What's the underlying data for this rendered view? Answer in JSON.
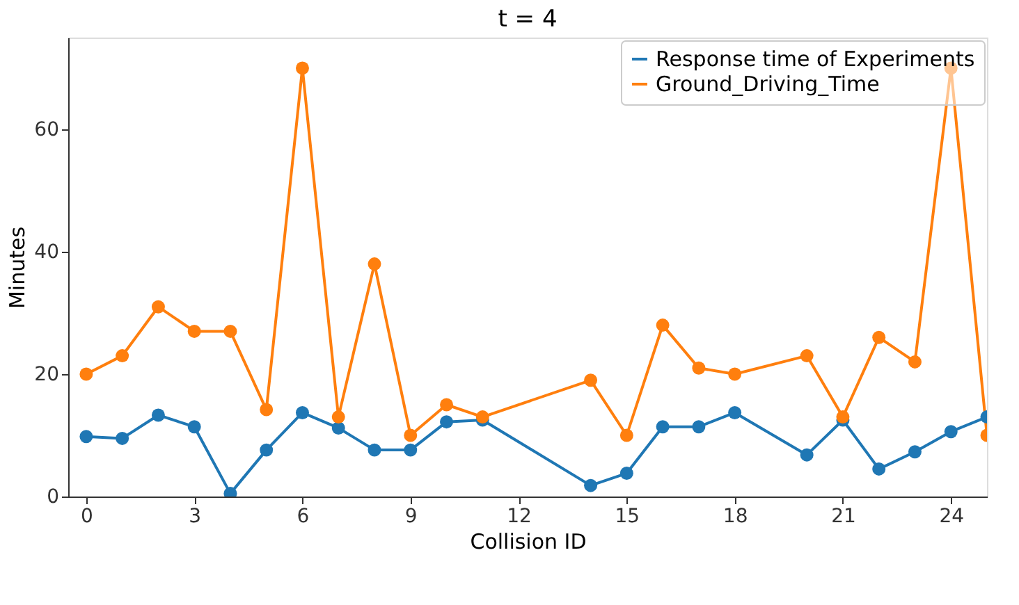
{
  "chart_data": {
    "type": "line",
    "title": "t = 4",
    "xlabel": "Collision ID",
    "ylabel": "Minutes",
    "x": [
      0,
      1,
      2,
      3,
      4,
      5,
      6,
      7,
      8,
      9,
      10,
      11,
      14,
      15,
      16,
      17,
      18,
      20,
      21,
      22,
      23,
      24,
      25
    ],
    "series": [
      {
        "name": "Response time of Experiments",
        "color": "#1f77b4",
        "values": [
          9.8,
          9.5,
          13.3,
          11.4,
          0.5,
          7.6,
          13.7,
          11.2,
          7.6,
          7.6,
          12.2,
          12.5,
          1.8,
          3.8,
          11.4,
          11.4,
          13.7,
          6.8,
          12.5,
          4.5,
          7.3,
          10.6,
          13
        ]
      },
      {
        "name": "Ground_Driving_Time",
        "color": "#ff7f0e",
        "values": [
          20,
          23,
          31,
          27,
          27,
          14.2,
          70,
          13,
          38,
          10,
          15,
          13,
          19,
          10,
          28,
          21,
          20,
          23,
          13,
          26,
          22,
          70,
          10
        ]
      }
    ],
    "xlim": [
      -0.5,
      25
    ],
    "xticks": [
      0,
      3,
      6,
      9,
      12,
      15,
      18,
      21,
      24
    ],
    "ylim": [
      0,
      75
    ],
    "yticks": [
      0,
      20,
      40,
      60
    ],
    "marker": "circle",
    "line_style": "solid",
    "legend": "top right",
    "grid": false
  }
}
